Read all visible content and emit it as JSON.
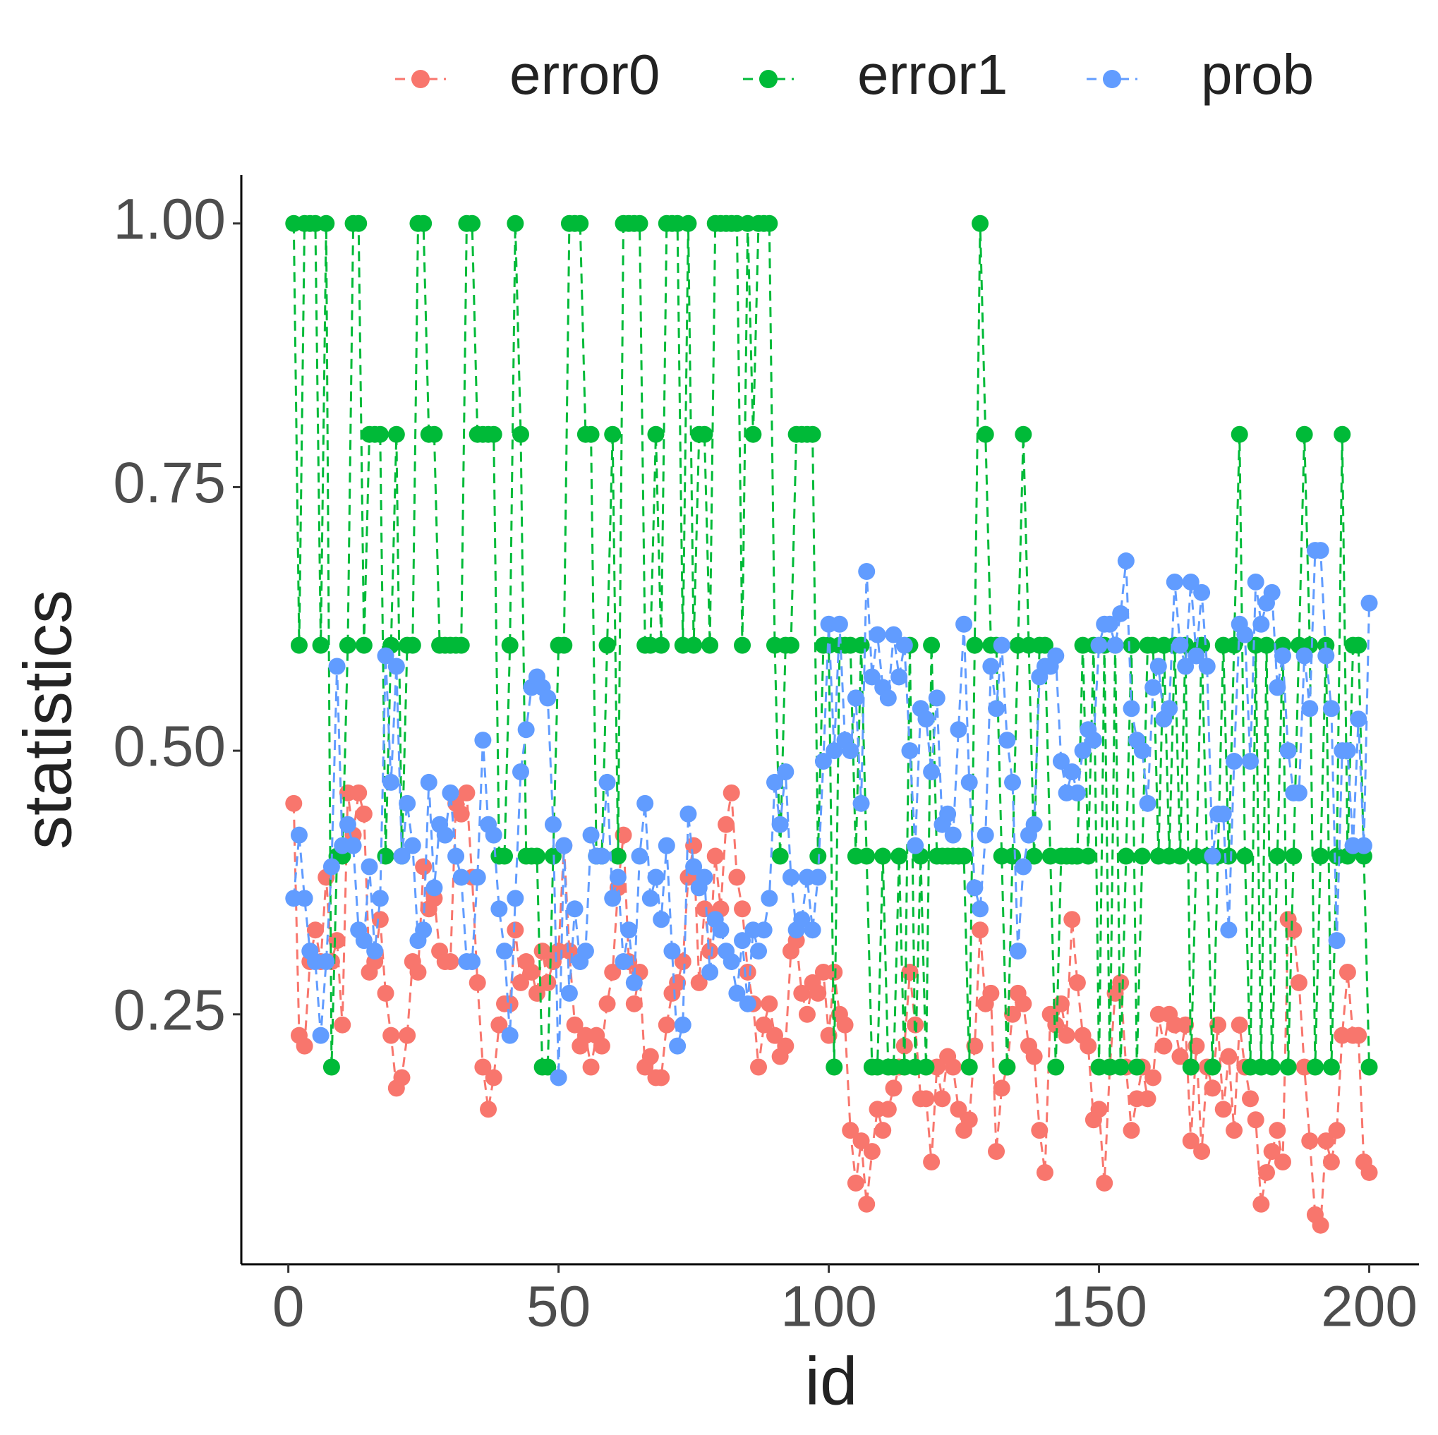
{
  "chart_data": {
    "type": "line",
    "x": [
      1,
      2,
      3,
      4,
      5,
      6,
      7,
      8,
      9,
      10,
      11,
      12,
      13,
      14,
      15,
      16,
      17,
      18,
      19,
      20,
      21,
      22,
      23,
      24,
      25,
      26,
      27,
      28,
      29,
      30,
      31,
      32,
      33,
      34,
      35,
      36,
      37,
      38,
      39,
      40,
      41,
      42,
      43,
      44,
      45,
      46,
      47,
      48,
      49,
      50,
      51,
      52,
      53,
      54,
      55,
      56,
      57,
      58,
      59,
      60,
      61,
      62,
      63,
      64,
      65,
      66,
      67,
      68,
      69,
      70,
      71,
      72,
      73,
      74,
      75,
      76,
      77,
      78,
      79,
      80,
      81,
      82,
      83,
      84,
      85,
      86,
      87,
      88,
      89,
      90,
      91,
      92,
      93,
      94,
      95,
      96,
      97,
      98,
      99,
      100,
      101,
      102,
      103,
      104,
      105,
      106,
      107,
      108,
      109,
      110,
      111,
      112,
      113,
      114,
      115,
      116,
      117,
      118,
      119,
      120,
      121,
      122,
      123,
      124,
      125,
      126,
      127,
      128,
      129,
      130,
      131,
      132,
      133,
      134,
      135,
      136,
      137,
      138,
      139,
      140,
      141,
      142,
      143,
      144,
      145,
      146,
      147,
      148,
      149,
      150,
      151,
      152,
      153,
      154,
      155,
      156,
      157,
      158,
      159,
      160,
      161,
      162,
      163,
      164,
      165,
      166,
      167,
      168,
      169,
      170,
      171,
      172,
      173,
      174,
      175,
      176,
      177,
      178,
      179,
      180,
      181,
      182,
      183,
      184,
      185,
      186,
      187,
      188,
      189,
      190,
      191,
      192,
      193,
      194,
      195,
      196,
      197,
      198,
      199,
      200
    ],
    "series": [
      {
        "name": "error0",
        "color": "#F8766D",
        "values": [
          0.45,
          0.23,
          0.22,
          0.3,
          0.33,
          0.3,
          0.38,
          0.3,
          0.32,
          0.24,
          0.46,
          0.42,
          0.46,
          0.44,
          0.29,
          0.3,
          0.34,
          0.27,
          0.23,
          0.18,
          0.19,
          0.23,
          0.3,
          0.29,
          0.39,
          0.35,
          0.36,
          0.31,
          0.3,
          0.3,
          0.45,
          0.44,
          0.46,
          0.38,
          0.28,
          0.2,
          0.16,
          0.19,
          0.24,
          0.26,
          0.26,
          0.33,
          0.28,
          0.3,
          0.29,
          0.27,
          0.31,
          0.28,
          0.3,
          0.31,
          0.41,
          0.31,
          0.24,
          0.22,
          0.23,
          0.2,
          0.23,
          0.22,
          0.26,
          0.29,
          0.37,
          0.42,
          0.3,
          0.26,
          0.29,
          0.2,
          0.21,
          0.19,
          0.19,
          0.24,
          0.27,
          0.28,
          0.3,
          0.38,
          0.41,
          0.28,
          0.35,
          0.31,
          0.4,
          0.35,
          0.43,
          0.46,
          0.38,
          0.35,
          0.29,
          0.26,
          0.2,
          0.24,
          0.26,
          0.23,
          0.21,
          0.22,
          0.31,
          0.32,
          0.27,
          0.25,
          0.28,
          0.27,
          0.29,
          0.23,
          0.29,
          0.25,
          0.24,
          0.14,
          0.09,
          0.13,
          0.07,
          0.12,
          0.16,
          0.14,
          0.16,
          0.18,
          0.2,
          0.22,
          0.29,
          0.24,
          0.17,
          0.17,
          0.11,
          0.2,
          0.17,
          0.21,
          0.2,
          0.16,
          0.14,
          0.15,
          0.22,
          0.33,
          0.26,
          0.27,
          0.12,
          0.18,
          0.2,
          0.25,
          0.27,
          0.26,
          0.22,
          0.21,
          0.14,
          0.1,
          0.25,
          0.24,
          0.26,
          0.23,
          0.34,
          0.28,
          0.23,
          0.22,
          0.15,
          0.16,
          0.09,
          0.2,
          0.27,
          0.28,
          0.2,
          0.14,
          0.17,
          0.2,
          0.17,
          0.19,
          0.25,
          0.22,
          0.25,
          0.24,
          0.21,
          0.24,
          0.13,
          0.22,
          0.12,
          0.2,
          0.18,
          0.24,
          0.16,
          0.21,
          0.14,
          0.24,
          0.2,
          0.17,
          0.15,
          0.07,
          0.1,
          0.12,
          0.14,
          0.11,
          0.34,
          0.33,
          0.28,
          0.2,
          0.13,
          0.06,
          0.05,
          0.13,
          0.11,
          0.14,
          0.23,
          0.29,
          0.23,
          0.23,
          0.11,
          0.1
        ]
      },
      {
        "name": "error1",
        "color": "#00BA38",
        "values": [
          1.0,
          0.6,
          1.0,
          1.0,
          1.0,
          0.6,
          1.0,
          0.2,
          0.4,
          0.4,
          0.6,
          1.0,
          1.0,
          0.6,
          0.8,
          0.8,
          0.8,
          0.4,
          0.6,
          0.8,
          0.4,
          0.6,
          0.6,
          1.0,
          1.0,
          0.8,
          0.8,
          0.6,
          0.6,
          0.6,
          0.6,
          0.6,
          1.0,
          1.0,
          0.8,
          0.8,
          0.8,
          0.8,
          0.4,
          0.4,
          0.6,
          1.0,
          0.8,
          0.4,
          0.4,
          0.4,
          0.2,
          0.2,
          0.4,
          0.6,
          0.6,
          1.0,
          1.0,
          1.0,
          0.8,
          0.8,
          0.4,
          0.4,
          0.6,
          0.8,
          0.4,
          1.0,
          1.0,
          1.0,
          1.0,
          0.6,
          0.6,
          0.8,
          0.6,
          1.0,
          1.0,
          1.0,
          0.6,
          1.0,
          0.6,
          0.8,
          0.8,
          0.6,
          1.0,
          1.0,
          1.0,
          1.0,
          1.0,
          0.6,
          1.0,
          0.8,
          1.0,
          1.0,
          1.0,
          0.6,
          0.4,
          0.6,
          0.6,
          0.8,
          0.8,
          0.8,
          0.8,
          0.4,
          0.6,
          0.6,
          0.2,
          0.6,
          0.6,
          0.6,
          0.4,
          0.6,
          0.4,
          0.2,
          0.2,
          0.4,
          0.2,
          0.2,
          0.4,
          0.2,
          0.6,
          0.2,
          0.4,
          0.2,
          0.6,
          0.4,
          0.4,
          0.4,
          0.4,
          0.4,
          0.4,
          0.2,
          0.6,
          1.0,
          0.8,
          0.6,
          0.6,
          0.4,
          0.2,
          0.4,
          0.6,
          0.8,
          0.6,
          0.4,
          0.6,
          0.6,
          0.4,
          0.2,
          0.4,
          0.4,
          0.4,
          0.4,
          0.6,
          0.4,
          0.6,
          0.2,
          0.6,
          0.2,
          0.6,
          0.2,
          0.4,
          0.6,
          0.2,
          0.4,
          0.6,
          0.6,
          0.4,
          0.6,
          0.4,
          0.6,
          0.4,
          0.6,
          0.2,
          0.4,
          0.6,
          0.4,
          0.2,
          0.4,
          0.6,
          0.4,
          0.6,
          0.8,
          0.4,
          0.2,
          0.6,
          0.2,
          0.6,
          0.2,
          0.4,
          0.6,
          0.2,
          0.4,
          0.6,
          0.8,
          0.6,
          0.2,
          0.4,
          0.6,
          0.2,
          0.4,
          0.8,
          0.4,
          0.6,
          0.6,
          0.4,
          0.2
        ]
      },
      {
        "name": "prob",
        "color": "#619CFF",
        "values": [
          0.36,
          0.42,
          0.36,
          0.31,
          0.3,
          0.23,
          0.3,
          0.39,
          0.58,
          0.41,
          0.43,
          0.41,
          0.33,
          0.32,
          0.39,
          0.31,
          0.36,
          0.59,
          0.47,
          0.58,
          0.4,
          0.45,
          0.41,
          0.32,
          0.33,
          0.47,
          0.37,
          0.43,
          0.42,
          0.46,
          0.4,
          0.38,
          0.3,
          0.3,
          0.38,
          0.51,
          0.43,
          0.42,
          0.35,
          0.31,
          0.23,
          0.36,
          0.48,
          0.52,
          0.56,
          0.57,
          0.56,
          0.55,
          0.43,
          0.19,
          0.41,
          0.27,
          0.35,
          0.3,
          0.31,
          0.42,
          0.4,
          0.4,
          0.47,
          0.36,
          0.38,
          0.3,
          0.33,
          0.28,
          0.4,
          0.45,
          0.36,
          0.38,
          0.34,
          0.41,
          0.31,
          0.22,
          0.24,
          0.44,
          0.39,
          0.37,
          0.38,
          0.29,
          0.34,
          0.33,
          0.31,
          0.3,
          0.27,
          0.32,
          0.26,
          0.33,
          0.31,
          0.33,
          0.36,
          0.47,
          0.43,
          0.48,
          0.38,
          0.33,
          0.34,
          0.38,
          0.33,
          0.38,
          0.49,
          0.62,
          0.5,
          0.62,
          0.51,
          0.5,
          0.55,
          0.45,
          0.67,
          0.57,
          0.61,
          0.56,
          0.55,
          0.61,
          0.57,
          0.6,
          0.5,
          0.41,
          0.54,
          0.53,
          0.48,
          0.55,
          0.43,
          0.44,
          0.42,
          0.52,
          0.62,
          0.47,
          0.37,
          0.35,
          0.42,
          0.58,
          0.54,
          0.6,
          0.51,
          0.47,
          0.31,
          0.39,
          0.42,
          0.43,
          0.57,
          0.58,
          0.58,
          0.59,
          0.49,
          0.46,
          0.48,
          0.46,
          0.5,
          0.52,
          0.51,
          0.6,
          0.62,
          0.62,
          0.6,
          0.63,
          0.68,
          0.54,
          0.51,
          0.5,
          0.45,
          0.56,
          0.58,
          0.53,
          0.54,
          0.66,
          0.6,
          0.58,
          0.66,
          0.59,
          0.65,
          0.58,
          0.4,
          0.44,
          0.44,
          0.33,
          0.49,
          0.62,
          0.61,
          0.49,
          0.66,
          0.62,
          0.64,
          0.65,
          0.56,
          0.59,
          0.5,
          0.46,
          0.46,
          0.59,
          0.54,
          0.69,
          0.69,
          0.59,
          0.54,
          0.32,
          0.5,
          0.5,
          0.41,
          0.53,
          0.41,
          0.64
        ]
      }
    ],
    "xlabel": "id",
    "ylabel": "statistics",
    "xlim": [
      -8.7,
      209.2
    ],
    "ylim": [
      0.013,
      1.046
    ],
    "xticks": [
      0,
      50,
      100,
      150,
      200
    ],
    "yticks": [
      0.25,
      {
        "value": 0.5,
        "label": "0.50"
      },
      0.75,
      {
        "value": 1,
        "label": "1.00"
      }
    ],
    "grid": false,
    "legend": "top"
  }
}
